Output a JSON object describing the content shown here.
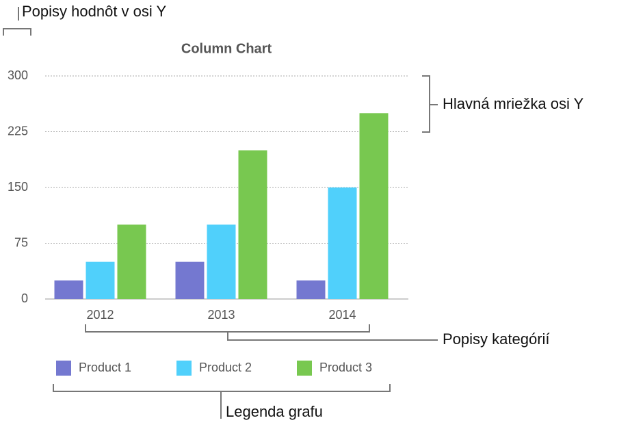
{
  "chart_data": {
    "type": "bar",
    "title": "Column Chart",
    "categories": [
      "2012",
      "2013",
      "2014"
    ],
    "series": [
      {
        "name": "Product 1",
        "color": "#7478d0",
        "values": [
          25,
          50,
          25
        ]
      },
      {
        "name": "Product 2",
        "color": "#50d0fb",
        "values": [
          50,
          100,
          150
        ]
      },
      {
        "name": "Product 3",
        "color": "#78c850",
        "values": [
          100,
          200,
          250
        ]
      }
    ],
    "ylim": [
      0,
      300
    ],
    "yticks": [
      0,
      75,
      150,
      225,
      300
    ],
    "grid": true,
    "legend": "bottom",
    "annotations": [
      "Popisy hodnôt v osi Y",
      "Hlavná mriežka osi Y",
      "Popisy kategórií",
      "Legenda grafu"
    ]
  }
}
